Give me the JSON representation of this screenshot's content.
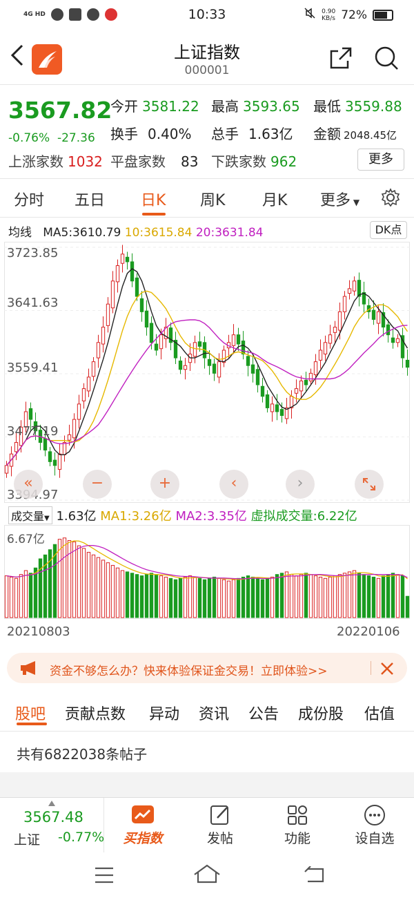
{
  "status_bar": {
    "time": "10:33",
    "network": "4G HD",
    "speed_value": "0.90",
    "speed_unit": "KB/s",
    "battery": "72%"
  },
  "header": {
    "title": "上证指数",
    "code": "000001"
  },
  "quote": {
    "price": "3567.82",
    "change_pct": "-0.76%",
    "change_abs": "-27.36",
    "open_label": "今开",
    "open": "3581.22",
    "high_label": "最高",
    "high": "3593.65",
    "low_label": "最低",
    "low": "3559.88",
    "turnover_label": "换手",
    "turnover": "0.40%",
    "volume_label": "总手",
    "volume": "1.63亿",
    "amount_label": "金额",
    "amount": "2048.45亿",
    "up_label": "上涨家数",
    "up": "1032",
    "flat_label": "平盘家数",
    "flat": "83",
    "down_label": "下跌家数",
    "down": "962",
    "more": "更多"
  },
  "chart_tabs": [
    "分时",
    "五日",
    "日K",
    "周K",
    "月K",
    "更多"
  ],
  "active_chart_tab": "日K",
  "ma_bar": {
    "label": "均线",
    "ma5": "MA5:3610.79",
    "ma10": "10:3615.84",
    "ma20": "20:3631.84",
    "dk": "DK点"
  },
  "price_axis": [
    "3723.85",
    "3641.63",
    "3559.41",
    "3477.19",
    "3394.97"
  ],
  "volume_bar": {
    "selector": "成交量",
    "value": "1.63亿",
    "ma1": "MA1:3.26亿",
    "ma2": "MA2:3.35亿",
    "virtual": "虚拟成交量:6.22亿",
    "axis_max": "6.67亿"
  },
  "dates": {
    "start": "20210803",
    "end": "20220106"
  },
  "banner": {
    "text": "资金不够怎么办？快来体验保证金交易！立即体验>>"
  },
  "sub_tabs": [
    "股吧",
    "贡献点数",
    "异动",
    "资讯",
    "公告",
    "成份股",
    "估值"
  ],
  "active_sub_tab": "股吧",
  "posts_text": "共有6822038条帖子",
  "bottom_bar": {
    "price": "3567.48",
    "name": "上证",
    "pct": "-0.77%",
    "items": [
      "买指数",
      "发帖",
      "功能",
      "设自选"
    ]
  },
  "colors": {
    "up": "#d92020",
    "down": "#1a9b20",
    "accent": "#e85a1a",
    "ma5": "#222222",
    "ma10": "#e6b800",
    "ma20": "#c020c0"
  },
  "chart_data": {
    "type": "candlestick",
    "x_range": [
      "20210803",
      "20220106"
    ],
    "ylim": [
      3394.97,
      3723.85
    ],
    "y_ticks": [
      3723.85,
      3641.63,
      3559.41,
      3477.19,
      3394.97
    ],
    "closes": [
      3440,
      3455,
      3470,
      3490,
      3510,
      3500,
      3485,
      3470,
      3460,
      3445,
      3440,
      3455,
      3470,
      3480,
      3500,
      3520,
      3540,
      3555,
      3575,
      3600,
      3620,
      3650,
      3680,
      3700,
      3715,
      3705,
      3680,
      3660,
      3640,
      3620,
      3600,
      3590,
      3610,
      3620,
      3600,
      3580,
      3565,
      3570,
      3585,
      3600,
      3595,
      3580,
      3570,
      3560,
      3575,
      3590,
      3600,
      3610,
      3598,
      3585,
      3570,
      3560,
      3545,
      3530,
      3515,
      3520,
      3510,
      3505,
      3515,
      3530,
      3540,
      3550,
      3545,
      3560,
      3575,
      3590,
      3600,
      3610,
      3620,
      3640,
      3660,
      3670,
      3680,
      3660,
      3650,
      3640,
      3630,
      3640,
      3620,
      3610,
      3600,
      3605,
      3580,
      3567.82
    ],
    "volumes": [
      3.2,
      3.1,
      3.0,
      3.3,
      3.6,
      3.4,
      3.8,
      4.5,
      4.8,
      5.2,
      5.6,
      6.0,
      6.1,
      5.9,
      5.8,
      5.5,
      5.3,
      5.0,
      4.8,
      4.6,
      4.4,
      4.2,
      4.0,
      3.8,
      3.6,
      3.5,
      3.4,
      3.3,
      3.2,
      3.3,
      3.4,
      3.3,
      3.2,
      3.1,
      3.0,
      2.9,
      3.0,
      3.1,
      3.2,
      3.1,
      3.0,
      2.9,
      3.0,
      3.1,
      3.0,
      2.9,
      2.8,
      2.9,
      3.0,
      3.1,
      3.2,
      3.1,
      3.0,
      2.9,
      3.0,
      3.1,
      3.3,
      3.4,
      3.5,
      3.3,
      3.2,
      3.3,
      3.4,
      3.3,
      3.2,
      3.1,
      3.0,
      3.1,
      3.2,
      3.3,
      3.4,
      3.5,
      3.6,
      3.4,
      3.3,
      3.2,
      3.1,
      3.0,
      3.2,
      3.3,
      3.4,
      3.3,
      3.2,
      1.63
    ],
    "series": [
      {
        "name": "MA5",
        "values": [
          3610.79
        ]
      },
      {
        "name": "MA10",
        "values": [
          3615.84
        ]
      },
      {
        "name": "MA20",
        "values": [
          3631.84
        ]
      }
    ]
  }
}
